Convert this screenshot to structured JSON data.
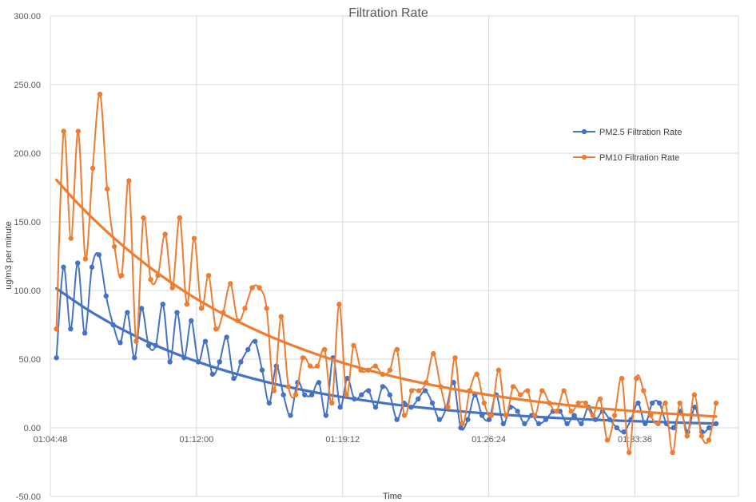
{
  "chart_data": {
    "type": "line",
    "title": "Filtration Rate",
    "xlabel": "Time",
    "ylabel": "ug/m3 per minute",
    "ylim": [
      -50,
      300
    ],
    "yticks": [
      "300.00",
      "250.00",
      "200.00",
      "150.00",
      "100.00",
      "50.00",
      "0.00",
      "-50.00"
    ],
    "x_range_minutes": [
      64.8,
      98.7
    ],
    "xticks": [
      {
        "label": "01:04:48",
        "minute": 64.8
      },
      {
        "label": "01:12:00",
        "minute": 72.0
      },
      {
        "label": "01:19:12",
        "minute": 79.2
      },
      {
        "label": "01:26:24",
        "minute": 86.4
      },
      {
        "label": "01:33:36",
        "minute": 93.6
      }
    ],
    "grid": true,
    "legend": "right",
    "x_start_minute": 65.1,
    "x_end_minute": 97.6,
    "series": [
      {
        "name": "PM2.5 Filtration Rate",
        "color": "#4472C4",
        "values": [
          51,
          117,
          72,
          120,
          69,
          117,
          126,
          96,
          75,
          62,
          84,
          51,
          87,
          60,
          60,
          90,
          48,
          84,
          51,
          78,
          48,
          63,
          39,
          48,
          66,
          36,
          48,
          57,
          63,
          42,
          18,
          45,
          24,
          9,
          33,
          24,
          24,
          33,
          9,
          51,
          15,
          36,
          21,
          24,
          27,
          15,
          30,
          24,
          6,
          18,
          15,
          21,
          27,
          18,
          6,
          15,
          33,
          0,
          6,
          24,
          9,
          6,
          24,
          3,
          15,
          12,
          3,
          9,
          3,
          6,
          12,
          12,
          3,
          9,
          3,
          15,
          6,
          12,
          6,
          0,
          -3,
          6,
          18,
          3,
          18,
          18,
          3,
          0,
          12,
          -3,
          15,
          -3,
          0,
          3
        ],
        "trend": [
          101.5,
          86.6,
          73.9,
          63.0,
          53.8,
          45.9,
          39.2,
          33.4,
          28.5,
          24.3,
          20.8,
          17.7,
          15.1,
          12.9,
          11.0,
          9.4,
          8.0,
          6.8,
          5.8,
          5.0,
          4.3,
          3.6,
          3.1
        ]
      },
      {
        "name": "PM10 Filtration Rate",
        "color": "#ED7D31",
        "values": [
          72,
          216,
          138,
          216,
          123,
          189,
          243,
          174,
          132,
          111,
          180,
          63,
          153,
          108,
          111,
          141,
          102,
          153,
          90,
          138,
          87,
          111,
          72,
          84,
          105,
          78,
          87,
          102,
          102,
          87,
          27,
          81,
          30,
          24,
          51,
          45,
          45,
          57,
          18,
          90,
          24,
          60,
          42,
          42,
          45,
          39,
          42,
          57,
          9,
          27,
          27,
          33,
          54,
          30,
          15,
          51,
          3,
          27,
          39,
          18,
          9,
          42,
          9,
          30,
          24,
          27,
          9,
          27,
          18,
          12,
          27,
          12,
          18,
          18,
          9,
          21,
          -9,
          9,
          36,
          -18,
          36,
          27,
          9,
          3,
          18,
          -18,
          18,
          -6,
          24,
          -6,
          -9,
          18
        ],
        "trend": [
          180.6,
          162.4,
          146.2,
          131.5,
          118.2,
          106.3,
          95.5,
          85.9,
          77.2,
          69.4,
          62.4,
          56.1,
          50.4,
          45.3,
          40.7,
          36.6,
          32.9,
          29.6,
          26.6,
          23.9,
          21.5,
          19.3,
          17.4,
          15.6,
          14.0,
          12.6,
          11.3,
          10.2,
          9.2,
          8.2
        ]
      }
    ]
  }
}
